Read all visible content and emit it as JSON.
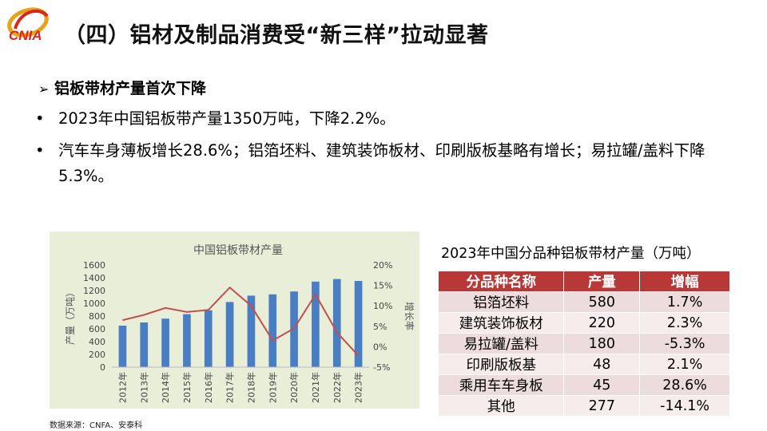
{
  "header": {
    "logo_text": "CNIA",
    "title": "（四）铝材及制品消费受“新三样”拉动显著"
  },
  "subheading": {
    "marker": "➢",
    "text": "铝板带材产量首次下降"
  },
  "bullets": [
    {
      "marker": "•",
      "text": "2023年中国铝板带产量1350万吨，下降2.2%。"
    },
    {
      "marker": "•",
      "text": "汽车车身薄板增长28.6%；铝箔坯料、建筑装饰板材、印刷版板基略有增长；易拉罐/盖料下降5.3%。"
    }
  ],
  "colors": {
    "bar": "#4a7ec2",
    "line": "#c0504d",
    "chart_bg": "#e9eed9",
    "table_header": "#b83838"
  },
  "chart_data": {
    "type": "bar",
    "title": "中国铝板带材产量",
    "categories": [
      "2012年",
      "2013年",
      "2014年",
      "2015年",
      "2016年",
      "2017年",
      "2018年",
      "2019年",
      "2020年",
      "2021年",
      "2022年",
      "2023年"
    ],
    "series": [
      {
        "name": "产量",
        "type": "bar",
        "axis": "left",
        "values": [
          650,
          700,
          760,
          830,
          890,
          1020,
          1120,
          1140,
          1185,
          1340,
          1380,
          1350
        ]
      },
      {
        "name": "增长率",
        "type": "line",
        "axis": "right",
        "values": [
          6.5,
          7.8,
          9.5,
          8.5,
          9.0,
          14.5,
          10.0,
          1.5,
          4.5,
          12.8,
          3.5,
          -2.2
        ]
      }
    ],
    "ylabel": "产量（万吨）",
    "y2label": "增长率",
    "ylim": [
      0,
      1600
    ],
    "yticks": [
      "1600",
      "1400",
      "1200",
      "1000",
      "800",
      "600",
      "400",
      "200",
      "0"
    ],
    "y2lim": [
      -5,
      20
    ],
    "y2ticks": [
      "20%",
      "15%",
      "10%",
      "5%",
      "0%",
      "-5%"
    ],
    "grid": false
  },
  "source_note": "数据来源：CNFA、安泰科",
  "table": {
    "title": "2023年中国分品种铝板带材产量（万吨）",
    "headers": [
      "分品种名称",
      "产量",
      "增幅"
    ],
    "rows": [
      [
        "铝箔坯料",
        "580",
        "1.7%"
      ],
      [
        "建筑装饰板材",
        "220",
        "2.3%"
      ],
      [
        "易拉罐/盖料",
        "180",
        "-5.3%"
      ],
      [
        "印刷版板基",
        "48",
        "2.1%"
      ],
      [
        "乘用车车身板",
        "45",
        "28.6%"
      ],
      [
        "其他",
        "277",
        "-14.1%"
      ]
    ]
  }
}
